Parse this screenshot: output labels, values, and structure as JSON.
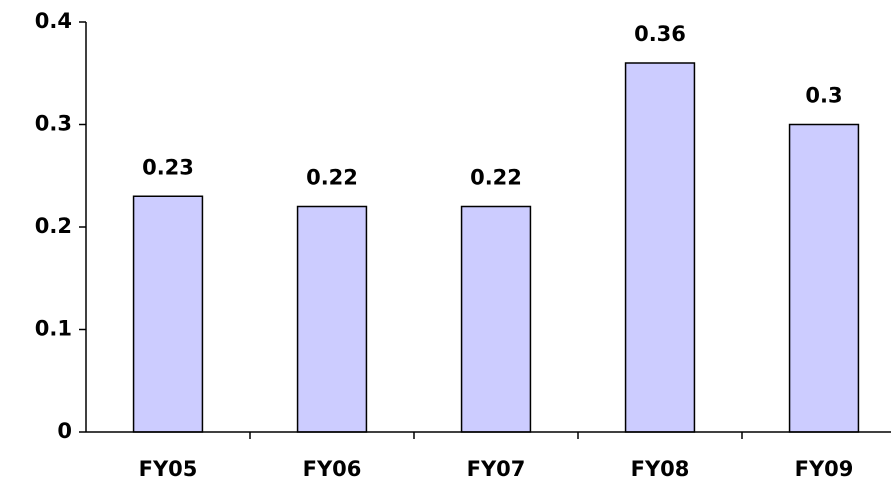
{
  "chart_data": {
    "type": "bar",
    "categories": [
      "FY05",
      "FY06",
      "FY07",
      "FY08",
      "FY09"
    ],
    "values": [
      0.23,
      0.22,
      0.22,
      0.36,
      0.3
    ],
    "color": "#ccccff",
    "ylim": [
      0,
      0.4
    ],
    "yticks": [
      0,
      0.1,
      0.2,
      0.3,
      0.4
    ],
    "grid": false
  }
}
